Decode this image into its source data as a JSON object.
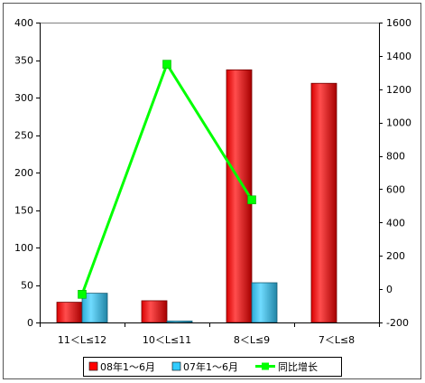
{
  "chart_data": {
    "type": "bar",
    "categories": [
      "11＜L≤12",
      "10＜L≤11",
      "8＜L≤9",
      "7＜L≤8"
    ],
    "series": [
      {
        "name": "08年1～6月",
        "type": "bar",
        "axis": "left",
        "color": "#FF0000",
        "values": [
          27,
          29,
          337,
          319
        ]
      },
      {
        "name": "07年1～6月",
        "type": "bar",
        "axis": "left",
        "color": "#33CCFF",
        "values": [
          39,
          2,
          53,
          0
        ]
      },
      {
        "name": "同比增长",
        "type": "line",
        "axis": "right",
        "color": "#00FF00",
        "values": [
          -31,
          1350,
          536,
          null
        ]
      }
    ],
    "y_left": {
      "ylim": [
        0,
        400
      ],
      "ticks": [
        0,
        50,
        100,
        150,
        200,
        250,
        300,
        350,
        400
      ]
    },
    "y_right": {
      "ylim": [
        -200,
        1600
      ],
      "ticks": [
        -200,
        0,
        200,
        400,
        600,
        800,
        1000,
        1200,
        1400,
        1600
      ]
    },
    "legend": "bottom",
    "grid": false
  }
}
